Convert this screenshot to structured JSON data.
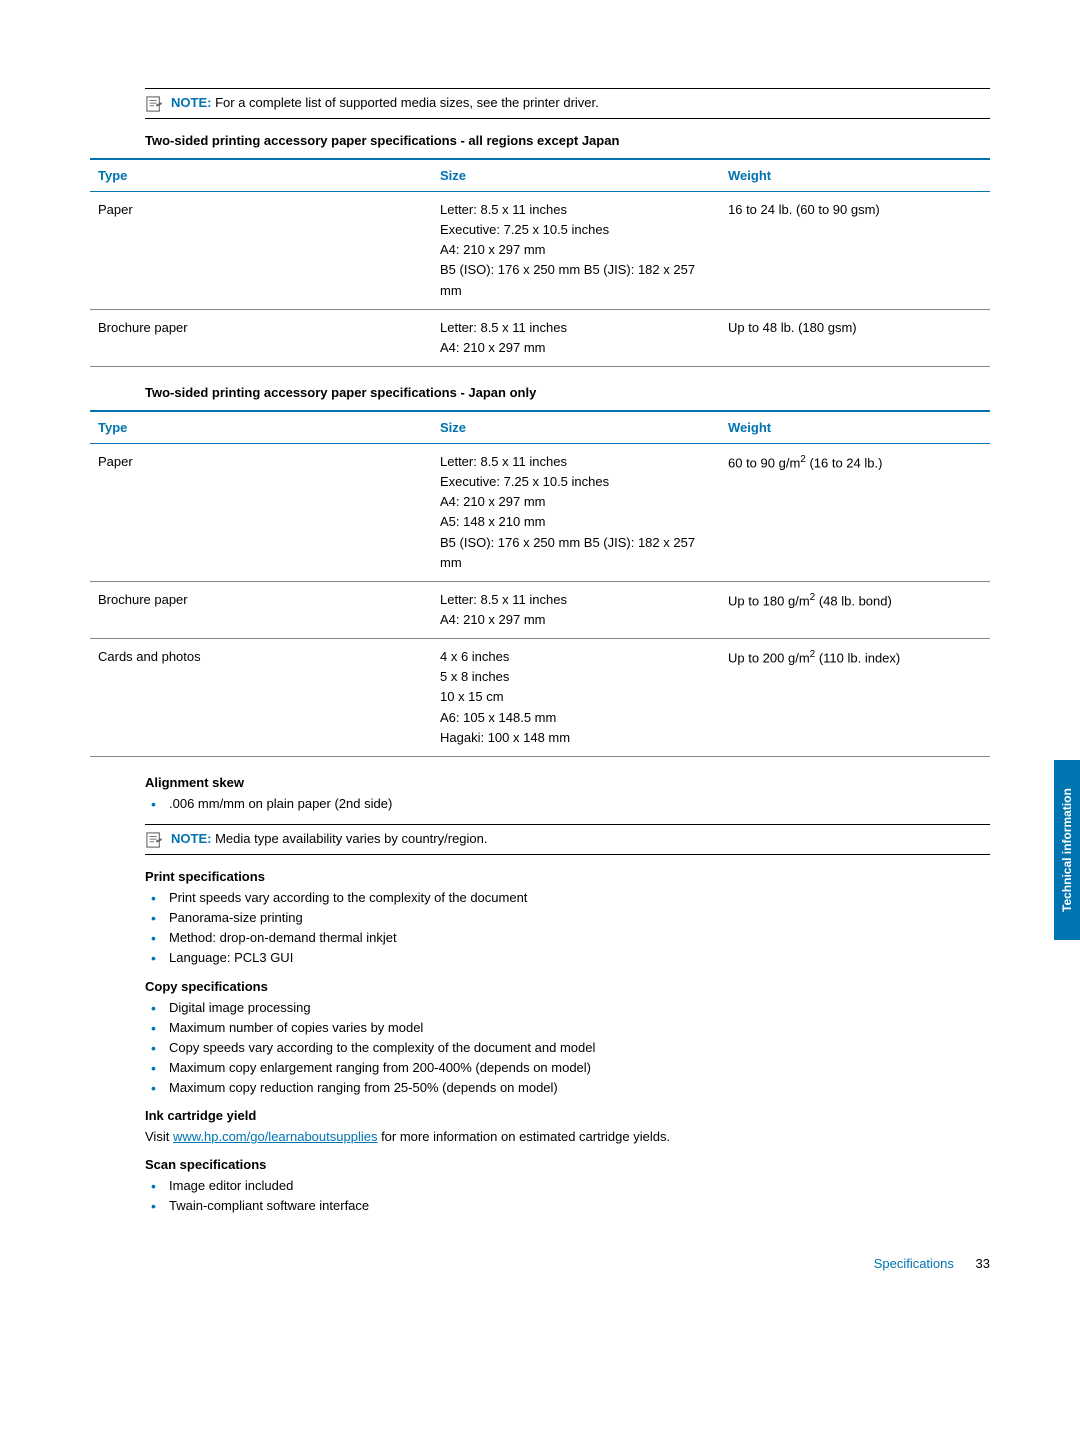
{
  "notes": {
    "note1_label": "NOTE:",
    "note1_text": "For a complete list of supported media sizes, see the printer driver.",
    "note2_label": "NOTE:",
    "note2_text": "Media type availability varies by country/region."
  },
  "table1": {
    "caption": "Two-sided printing accessory paper specifications - all regions except Japan",
    "headers": {
      "type": "Type",
      "size": "Size",
      "weight": "Weight"
    },
    "rows": [
      {
        "type": "Paper",
        "size": "Letter: 8.5 x 11 inches\nExecutive: 7.25 x 10.5 inches\nA4: 210 x 297 mm\nB5 (ISO): 176 x 250 mm B5 (JIS): 182 x 257 mm",
        "weight": "16 to 24 lb. (60 to 90 gsm)"
      },
      {
        "type": "Brochure paper",
        "size": "Letter: 8.5 x 11 inches\nA4: 210 x 297 mm",
        "weight": "Up to 48 lb. (180 gsm)"
      }
    ]
  },
  "table2": {
    "caption": "Two-sided printing accessory paper specifications - Japan only",
    "headers": {
      "type": "Type",
      "size": "Size",
      "weight": "Weight"
    },
    "rows": [
      {
        "type": "Paper",
        "size": "Letter: 8.5 x 11 inches\nExecutive: 7.25 x 10.5 inches\nA4: 210 x 297 mm\nA5: 148 x 210 mm\nB5 (ISO): 176 x 250 mm B5 (JIS): 182 x 257 mm",
        "weight_html": "60 to 90 g/m<span class='sup'>2</span> (16 to 24 lb.)"
      },
      {
        "type": "Brochure paper",
        "size": "Letter: 8.5 x 11 inches\nA4: 210 x 297 mm",
        "weight_html": "Up to 180 g/m<span class='sup'>2</span> (48 lb. bond)"
      },
      {
        "type": "Cards and photos",
        "size": "4 x 6 inches\n5 x 8 inches\n10 x 15 cm\nA6: 105 x 148.5 mm\nHagaki: 100 x 148 mm",
        "weight_html": "Up to 200 g/m<span class='sup'>2</span> (110 lb. index)"
      }
    ]
  },
  "alignment": {
    "heading": "Alignment skew",
    "items": [
      ".006 mm/mm on plain paper (2nd side)"
    ]
  },
  "print_specs": {
    "heading": "Print specifications",
    "items": [
      "Print speeds vary according to the complexity of the document",
      "Panorama-size printing",
      "Method: drop-on-demand thermal inkjet",
      "Language: PCL3 GUI"
    ]
  },
  "copy_specs": {
    "heading": "Copy specifications",
    "items": [
      "Digital image processing",
      "Maximum number of copies varies by model",
      "Copy speeds vary according to the complexity of the document and model",
      "Maximum copy enlargement ranging from 200-400% (depends on model)",
      "Maximum copy reduction ranging from 25-50% (depends on model)"
    ]
  },
  "ink": {
    "heading": "Ink cartridge yield",
    "text_prefix": "Visit ",
    "link_text": "www.hp.com/go/learnaboutsupplies",
    "link_href": "http://www.hp.com/go/learnaboutsupplies",
    "text_suffix": " for more information on estimated cartridge yields."
  },
  "scan_specs": {
    "heading": "Scan specifications",
    "items": [
      "Image editor included",
      "Twain-compliant software interface"
    ]
  },
  "footer": {
    "label": "Specifications",
    "page": "33"
  },
  "side_tab": "Technical information",
  "colors": {
    "brand": "#0073b1"
  }
}
